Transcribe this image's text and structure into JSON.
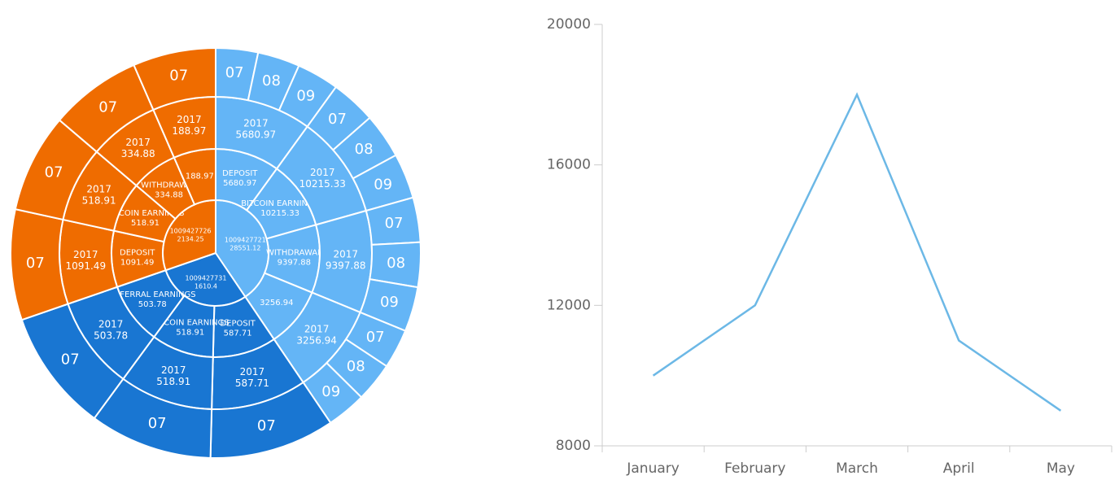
{
  "chart_data": [
    {
      "type": "sunburst",
      "children": [
        {
          "name": "1009427721",
          "value": 28551.12,
          "color": "#64b5f6",
          "children": [
            {
              "name": "DEPOSIT",
              "value": 5680.97,
              "children": [
                {
                  "name": "2017",
                  "value": 5680.97,
                  "children": [
                    {
                      "name": "07"
                    },
                    {
                      "name": "08"
                    },
                    {
                      "name": "09"
                    }
                  ]
                }
              ]
            },
            {
              "name": "BITCOIN EARNINGS",
              "value": 10215.33,
              "children": [
                {
                  "name": "2017",
                  "value": 10215.33,
                  "children": [
                    {
                      "name": "07"
                    },
                    {
                      "name": "08"
                    },
                    {
                      "name": "09"
                    }
                  ]
                }
              ]
            },
            {
              "name": "WITHDRAWAL",
              "value": 9397.88,
              "children": [
                {
                  "name": "2017",
                  "value": 9397.88,
                  "children": [
                    {
                      "name": "07"
                    },
                    {
                      "name": "08"
                    },
                    {
                      "name": "09"
                    }
                  ]
                }
              ]
            },
            {
              "value": 3256.94,
              "children": [
                {
                  "name": "2017",
                  "value": 3256.94,
                  "children": [
                    {
                      "name": "07"
                    },
                    {
                      "name": "08"
                    },
                    {
                      "name": "09"
                    }
                  ]
                }
              ]
            }
          ]
        },
        {
          "name": "1009427731",
          "value": 1610.4,
          "color": "#1976d2",
          "children": [
            {
              "name": "DEPOSIT",
              "value": 587.71,
              "children": [
                {
                  "name": "2017",
                  "value": 587.71,
                  "children": [
                    {
                      "name": "07"
                    }
                  ]
                }
              ]
            },
            {
              "name": "BITCOIN EARNINGS",
              "value": 518.91,
              "children": [
                {
                  "name": "2017",
                  "value": 518.91,
                  "children": [
                    {
                      "name": "07"
                    }
                  ]
                }
              ]
            },
            {
              "name": "REFERRAL EARNINGS",
              "value": 503.78,
              "children": [
                {
                  "name": "2017",
                  "value": 503.78,
                  "children": [
                    {
                      "name": "07"
                    }
                  ]
                }
              ]
            }
          ]
        },
        {
          "name": "1009427726",
          "value": 2134.25,
          "color": "#ef6c00",
          "children": [
            {
              "name": "DEPOSIT",
              "value": 1091.49,
              "children": [
                {
                  "name": "2017",
                  "value": 1091.49,
                  "children": [
                    {
                      "name": "07"
                    }
                  ]
                }
              ]
            },
            {
              "name": "BITCOIN EARNINGS",
              "value": 518.91,
              "children": [
                {
                  "name": "2017",
                  "value": 518.91,
                  "children": [
                    {
                      "name": "07"
                    }
                  ]
                }
              ]
            },
            {
              "name": "WITHDRAWAL",
              "value": 334.88,
              "children": [
                {
                  "name": "2017",
                  "value": 334.88,
                  "children": [
                    {
                      "name": "07"
                    }
                  ]
                }
              ]
            },
            {
              "value": 188.97,
              "children": [
                {
                  "name": "2017",
                  "value": 188.97,
                  "children": [
                    {
                      "name": "07"
                    }
                  ]
                }
              ]
            }
          ]
        }
      ]
    },
    {
      "type": "line",
      "categories": [
        "January",
        "February",
        "March",
        "April",
        "May"
      ],
      "values": [
        10000,
        12000,
        18000,
        11000,
        9000
      ],
      "color": "#6cb8e6",
      "ylim": [
        8000,
        20000
      ],
      "yticks": [
        8000,
        12000,
        16000,
        20000
      ]
    }
  ]
}
